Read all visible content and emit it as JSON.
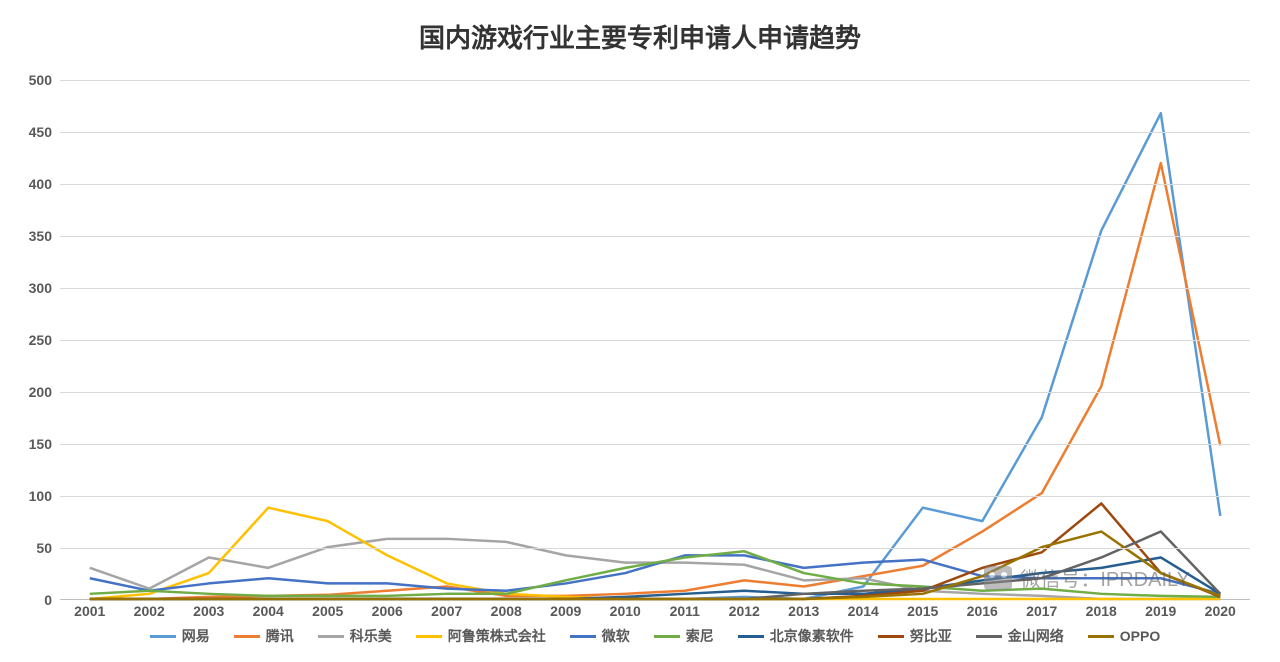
{
  "chart": {
    "type": "line",
    "title": "国内游戏行业主要专利申请人申请趋势",
    "title_fontsize": 26,
    "title_color": "#333333",
    "background_color": "#ffffff",
    "grid_color": "#d9d9d9",
    "axis_color": "#bfbfbf",
    "label_color": "#595959",
    "label_fontsize": 14,
    "ylim": [
      0,
      500
    ],
    "ytick_step": 50,
    "yticks": [
      0,
      50,
      100,
      150,
      200,
      250,
      300,
      350,
      400,
      450,
      500
    ],
    "categories": [
      "2001",
      "2002",
      "2003",
      "2004",
      "2005",
      "2006",
      "2007",
      "2008",
      "2009",
      "2010",
      "2011",
      "2012",
      "2013",
      "2014",
      "2015",
      "2016",
      "2017",
      "2018",
      "2019",
      "2020"
    ],
    "line_width": 2.5,
    "series": [
      {
        "name": "网易",
        "color": "#5b9bd5",
        "values": [
          0,
          0,
          0,
          0,
          0,
          0,
          0,
          0,
          0,
          0,
          0,
          2,
          0,
          12,
          88,
          75,
          175,
          355,
          468,
          80
        ]
      },
      {
        "name": "腾讯",
        "color": "#ed7d31",
        "values": [
          0,
          0,
          2,
          3,
          4,
          8,
          12,
          3,
          3,
          5,
          8,
          18,
          12,
          22,
          32,
          65,
          102,
          205,
          420,
          148
        ]
      },
      {
        "name": "科乐美",
        "color": "#a5a5a5",
        "values": [
          30,
          10,
          40,
          30,
          50,
          58,
          58,
          55,
          42,
          35,
          35,
          33,
          18,
          20,
          8,
          5,
          3,
          0,
          0,
          0
        ]
      },
      {
        "name": "阿鲁策株式会社",
        "color": "#ffc000",
        "values": [
          0,
          5,
          25,
          88,
          75,
          42,
          15,
          5,
          2,
          0,
          0,
          0,
          0,
          0,
          0,
          0,
          0,
          0,
          0,
          0
        ]
      },
      {
        "name": "微软",
        "color": "#4472c4",
        "values": [
          20,
          8,
          15,
          20,
          15,
          15,
          10,
          8,
          15,
          25,
          42,
          42,
          30,
          35,
          38,
          22,
          20,
          20,
          20,
          5
        ]
      },
      {
        "name": "索尼",
        "color": "#70ad47",
        "values": [
          5,
          8,
          5,
          3,
          3,
          3,
          5,
          5,
          18,
          30,
          40,
          46,
          25,
          15,
          12,
          8,
          10,
          5,
          3,
          2
        ]
      },
      {
        "name": "北京像素软件",
        "color": "#255e91",
        "values": [
          0,
          0,
          0,
          0,
          0,
          0,
          0,
          0,
          0,
          2,
          5,
          8,
          5,
          5,
          10,
          18,
          25,
          30,
          40,
          5
        ]
      },
      {
        "name": "努比亚",
        "color": "#9e480e",
        "values": [
          0,
          0,
          0,
          0,
          0,
          0,
          0,
          0,
          0,
          0,
          0,
          0,
          0,
          3,
          8,
          30,
          45,
          92,
          25,
          2
        ]
      },
      {
        "name": "金山网络",
        "color": "#636363",
        "values": [
          0,
          0,
          0,
          0,
          0,
          0,
          0,
          0,
          0,
          0,
          0,
          0,
          5,
          8,
          10,
          15,
          20,
          40,
          65,
          5
        ]
      },
      {
        "name": "OPPO",
        "color": "#997300",
        "values": [
          0,
          0,
          0,
          0,
          0,
          0,
          0,
          0,
          0,
          0,
          0,
          0,
          0,
          2,
          5,
          22,
          50,
          65,
          25,
          3
        ]
      }
    ]
  },
  "watermark": {
    "text": "微信号：IPRDAILY",
    "color": "#595959",
    "opacity": 0.55
  }
}
